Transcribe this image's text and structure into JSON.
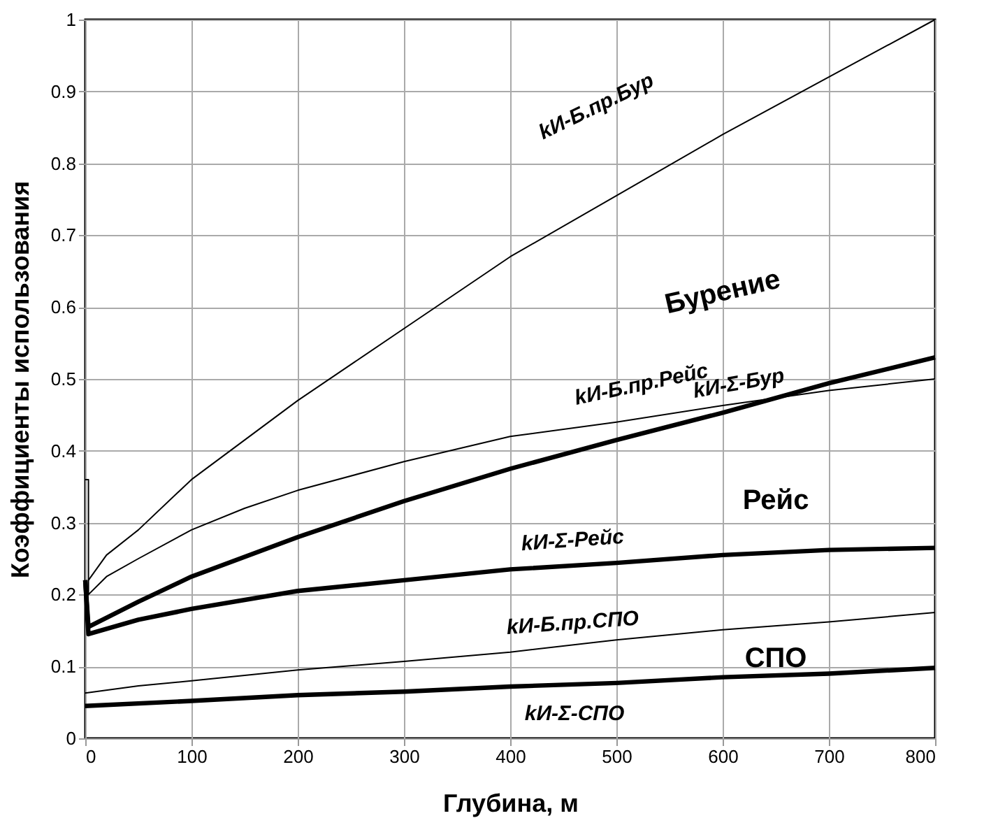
{
  "chart_data": {
    "type": "line",
    "xlabel": "Глубина, м",
    "ylabel": "Коэффициенты использования",
    "xlim": [
      0,
      800
    ],
    "xticks": [
      0,
      100,
      200,
      300,
      400,
      500,
      600,
      700,
      800
    ],
    "ylim": [
      0,
      1
    ],
    "yticks": [
      0,
      0.1,
      0.2,
      0.3,
      0.4,
      0.5,
      0.6,
      0.7,
      0.8,
      0.9,
      1
    ],
    "grid": true,
    "line_style": "solid",
    "marker": "none",
    "series": [
      {
        "name": "kИ-Б.пр.Бур",
        "color": "#000000",
        "x": [
          3,
          20,
          50,
          100,
          150,
          200,
          300,
          400,
          500,
          600,
          700,
          800
        ],
        "values": [
          0.22,
          0.255,
          0.29,
          0.36,
          0.415,
          0.47,
          0.57,
          0.67,
          0.755,
          0.84,
          0.92,
          1.0
        ]
      },
      {
        "name": "kИ-Б.пр.Рейс",
        "color": "#000000",
        "x": [
          0,
          3,
          3,
          20,
          50,
          100,
          150,
          200,
          300,
          400,
          500,
          600,
          700,
          800
        ],
        "values": [
          0.36,
          0.36,
          0.2,
          0.225,
          0.25,
          0.29,
          0.32,
          0.345,
          0.385,
          0.42,
          0.44,
          0.463,
          0.484,
          0.5
        ]
      },
      {
        "name": "kИ-Σ-Бур",
        "color": "#000000",
        "x": [
          0,
          3,
          50,
          100,
          200,
          300,
          400,
          500,
          600,
          700,
          800
        ],
        "values": [
          0.22,
          0.155,
          0.19,
          0.225,
          0.28,
          0.33,
          0.375,
          0.415,
          0.453,
          0.494,
          0.53
        ]
      },
      {
        "name": "kИ-Σ-Рейс",
        "color": "#000000",
        "x": [
          0,
          3,
          50,
          100,
          200,
          300,
          400,
          500,
          600,
          700,
          800
        ],
        "values": [
          0.22,
          0.145,
          0.165,
          0.18,
          0.205,
          0.22,
          0.235,
          0.244,
          0.255,
          0.262,
          0.265
        ]
      },
      {
        "name": "kИ-Б.пр.СПО",
        "color": "#000000",
        "x": [
          0,
          50,
          100,
          200,
          300,
          400,
          500,
          600,
          700,
          800
        ],
        "values": [
          0.063,
          0.073,
          0.08,
          0.095,
          0.107,
          0.12,
          0.137,
          0.151,
          0.162,
          0.175
        ]
      },
      {
        "name": "kИ-Σ-СПО",
        "color": "#000000",
        "x": [
          0,
          100,
          200,
          300,
          400,
          500,
          600,
          700,
          800
        ],
        "values": [
          0.045,
          0.052,
          0.06,
          0.065,
          0.072,
          0.077,
          0.085,
          0.09,
          0.098
        ]
      }
    ],
    "annotations": [
      "Бурение",
      "Рейс",
      "СПО"
    ]
  }
}
